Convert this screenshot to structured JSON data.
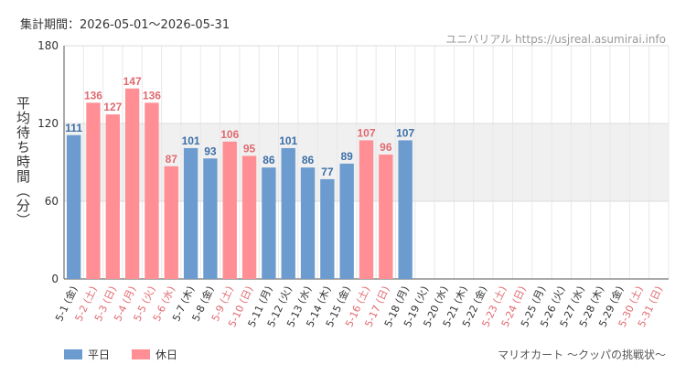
{
  "header": {
    "period": "集計期間：2026-05-01〜2026-05-31",
    "source": "ユニバリアル  https://usjreal.asumirai.info"
  },
  "footer": {
    "attraction": "マリオカート 〜クッパの挑戦状〜"
  },
  "legend": [
    {
      "label": "平日",
      "color": "#6b9bcf"
    },
    {
      "label": "休日",
      "color": "#ff8f94"
    }
  ],
  "colors": {
    "weekday": "#6b9bcf",
    "holiday": "#ff8f94",
    "weekday_text": "#3c6fa8",
    "holiday_text": "#e06a70",
    "date_weekday": "#333333",
    "date_holiday": "#e06a70",
    "band": "#f0f0f0"
  },
  "chart_data": {
    "type": "bar",
    "ylabel": "平均待ち時間（分）",
    "ylim": [
      0,
      180
    ],
    "yticks": [
      0,
      60,
      120,
      180
    ],
    "shaded_band": [
      60,
      120
    ],
    "categories": [
      "5-1 (金)",
      "5-2 (土)",
      "5-3 (日)",
      "5-4 (月)",
      "5-5 (火)",
      "5-6 (水)",
      "5-7 (木)",
      "5-8 (金)",
      "5-9 (土)",
      "5-10 (日)",
      "5-11 (月)",
      "5-12 (火)",
      "5-13 (水)",
      "5-14 (木)",
      "5-15 (金)",
      "5-16 (土)",
      "5-17 (日)",
      "5-18 (月)",
      "5-19 (火)",
      "5-20 (水)",
      "5-21 (木)",
      "5-22 (金)",
      "5-23 (土)",
      "5-24 (日)",
      "5-25 (月)",
      "5-26 (火)",
      "5-27 (水)",
      "5-28 (木)",
      "5-29 (金)",
      "5-30 (土)",
      "5-31 (日)"
    ],
    "values": [
      111,
      136,
      127,
      147,
      136,
      87,
      101,
      93,
      106,
      95,
      86,
      101,
      86,
      77,
      89,
      107,
      96,
      107,
      null,
      null,
      null,
      null,
      null,
      null,
      null,
      null,
      null,
      null,
      null,
      null,
      null
    ],
    "holiday": [
      false,
      true,
      true,
      true,
      true,
      true,
      false,
      false,
      true,
      true,
      false,
      false,
      false,
      false,
      false,
      true,
      true,
      false,
      false,
      false,
      false,
      false,
      true,
      true,
      false,
      false,
      false,
      false,
      false,
      true,
      true
    ],
    "series": [
      {
        "name": "平日"
      },
      {
        "name": "休日"
      }
    ]
  }
}
